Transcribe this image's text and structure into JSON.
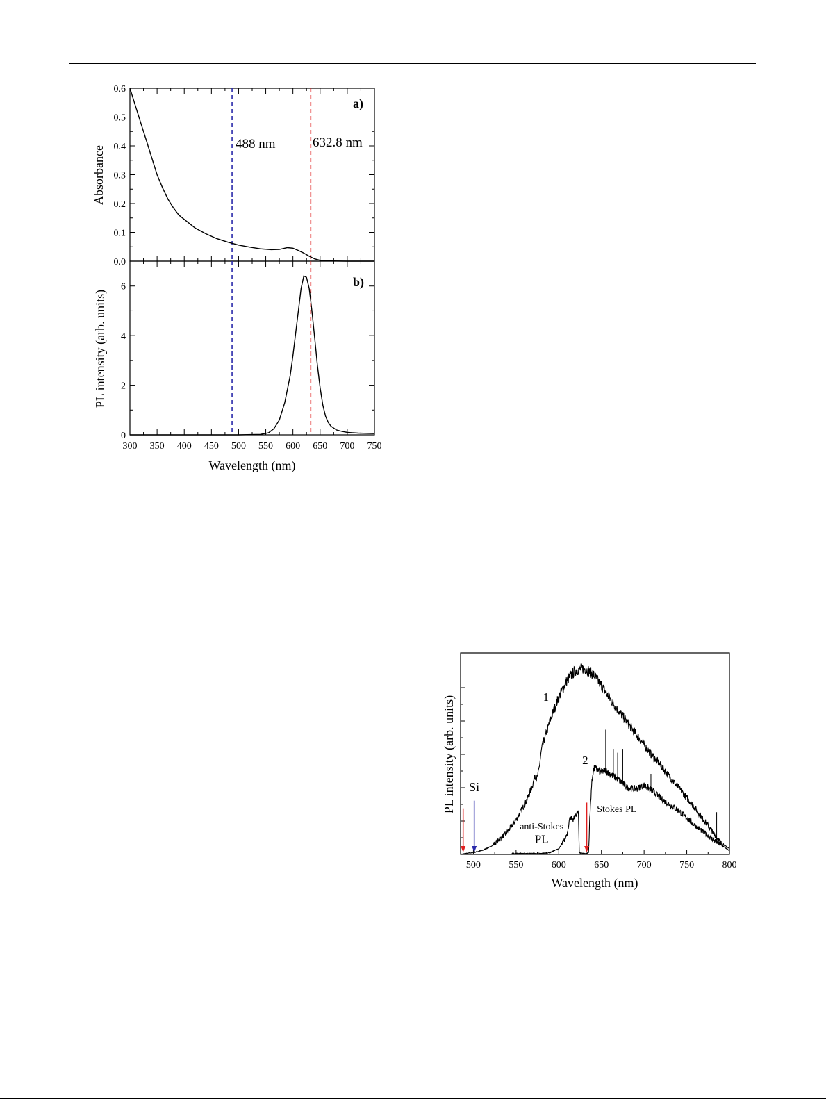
{
  "chart_data": [
    {
      "type": "line",
      "panel_label": "a)",
      "ylabel": "Absorbance",
      "xlim": [
        300,
        750
      ],
      "ylim": [
        0,
        0.6
      ],
      "yticks": [
        "0.0",
        "0.1",
        "0.2",
        "0.3",
        "0.4",
        "0.5",
        "0.6"
      ],
      "grid": false,
      "series": [
        {
          "x": [
            300,
            310,
            320,
            330,
            340,
            350,
            360,
            370,
            380,
            390,
            400,
            420,
            440,
            460,
            480,
            500,
            520,
            540,
            560,
            575,
            590,
            600,
            610,
            620,
            630,
            640,
            650,
            660,
            700,
            750
          ],
          "y": [
            0.6,
            0.54,
            0.48,
            0.42,
            0.36,
            0.3,
            0.255,
            0.215,
            0.185,
            0.16,
            0.145,
            0.115,
            0.095,
            0.078,
            0.066,
            0.056,
            0.049,
            0.043,
            0.04,
            0.041,
            0.047,
            0.045,
            0.037,
            0.028,
            0.017,
            0.008,
            0.003,
            0.001,
            0.0,
            0.0
          ],
          "color": "#000000"
        }
      ],
      "vlines": [
        {
          "x": 488,
          "label": "488 nm",
          "color": "#2a2aaa"
        },
        {
          "x": 632.8,
          "label": "632.8 nm",
          "color": "#e02020"
        }
      ]
    },
    {
      "type": "line",
      "panel_label": "b)",
      "xlabel": "Wavelength (nm)",
      "ylabel": "PL intensity (arb. units)",
      "xlim": [
        300,
        750
      ],
      "ylim": [
        0,
        7
      ],
      "xticks": [
        "300",
        "350",
        "400",
        "450",
        "500",
        "550",
        "600",
        "650",
        "700",
        "750"
      ],
      "yticks": [
        "0",
        "2",
        "4",
        "6"
      ],
      "grid": false,
      "series": [
        {
          "x": [
            300,
            500,
            540,
            555,
            565,
            575,
            585,
            595,
            600,
            605,
            610,
            615,
            620,
            625,
            630,
            635,
            640,
            645,
            650,
            655,
            660,
            665,
            670,
            680,
            690,
            700,
            720,
            750
          ],
          "y": [
            0,
            0,
            0.02,
            0.08,
            0.25,
            0.6,
            1.3,
            2.4,
            3.2,
            4.1,
            5.0,
            5.9,
            6.4,
            6.35,
            5.9,
            5.0,
            3.9,
            2.8,
            1.9,
            1.2,
            0.75,
            0.5,
            0.35,
            0.2,
            0.14,
            0.1,
            0.07,
            0.05
          ],
          "color": "#000000"
        }
      ],
      "vlines": [
        {
          "x": 488,
          "color": "#2a2aaa"
        },
        {
          "x": 632.8,
          "color": "#e02020"
        }
      ]
    },
    {
      "type": "line",
      "xlabel": "Wavelength (nm)",
      "ylabel": "PL intensity (arb. units)",
      "xlim": [
        485,
        800
      ],
      "ylim": [
        0,
        1
      ],
      "xticks": [
        "500",
        "550",
        "600",
        "650",
        "700",
        "750",
        "800"
      ],
      "grid": false,
      "series": [
        {
          "name": "1",
          "x": [
            485,
            490,
            495,
            500,
            505,
            510,
            520,
            530,
            540,
            550,
            560,
            565,
            570,
            572,
            574,
            576,
            580,
            590,
            600,
            610,
            620,
            630,
            640,
            650,
            660,
            680,
            700,
            720,
            740,
            760,
            780,
            785,
            790,
            800
          ],
          "y": [
            0.0,
            0.004,
            0.007,
            0.01,
            0.015,
            0.02,
            0.04,
            0.075,
            0.12,
            0.18,
            0.26,
            0.31,
            0.37,
            0.42,
            0.39,
            0.42,
            0.55,
            0.7,
            0.82,
            0.91,
            0.96,
            0.97,
            0.94,
            0.88,
            0.81,
            0.69,
            0.57,
            0.46,
            0.35,
            0.24,
            0.12,
            0.09,
            0.06,
            0.03
          ],
          "noisy": true,
          "color": "#000000"
        },
        {
          "name": "2",
          "x": [
            545,
            580,
            590,
            600,
            605,
            610,
            612,
            614,
            616,
            620,
            623,
            624,
            628,
            633,
            635,
            636,
            638,
            640,
            642,
            645,
            650,
            655,
            660,
            670,
            680,
            690,
            700,
            710,
            720,
            740,
            760,
            780,
            790,
            800
          ],
          "y": [
            0.005,
            0.005,
            0.01,
            0.03,
            0.06,
            0.11,
            0.17,
            0.2,
            0.17,
            0.21,
            0.22,
            0.01,
            0.005,
            0.005,
            0.01,
            0.15,
            0.33,
            0.43,
            0.45,
            0.44,
            0.43,
            0.44,
            0.42,
            0.39,
            0.35,
            0.34,
            0.36,
            0.33,
            0.29,
            0.23,
            0.15,
            0.08,
            0.05,
            0.02
          ],
          "noisy": true,
          "color": "#000000"
        }
      ],
      "annotations": [
        {
          "text": "1",
          "x": 585,
          "y": 0.8
        },
        {
          "text": "2",
          "x": 631,
          "y": 0.47
        },
        {
          "text": "Si",
          "x": 501,
          "y": 0.33
        },
        {
          "text": "anti-Stokes",
          "x": 580,
          "y": 0.13
        },
        {
          "text": "PL",
          "x": 580,
          "y": 0.06
        },
        {
          "text": "Stokes PL",
          "x": 668,
          "y": 0.22
        }
      ],
      "arrows": [
        {
          "x": 488,
          "color": "#e02020"
        },
        {
          "x": 501,
          "color": "#2a2aaa"
        },
        {
          "x": 632.8,
          "color": "#e02020"
        }
      ]
    }
  ]
}
